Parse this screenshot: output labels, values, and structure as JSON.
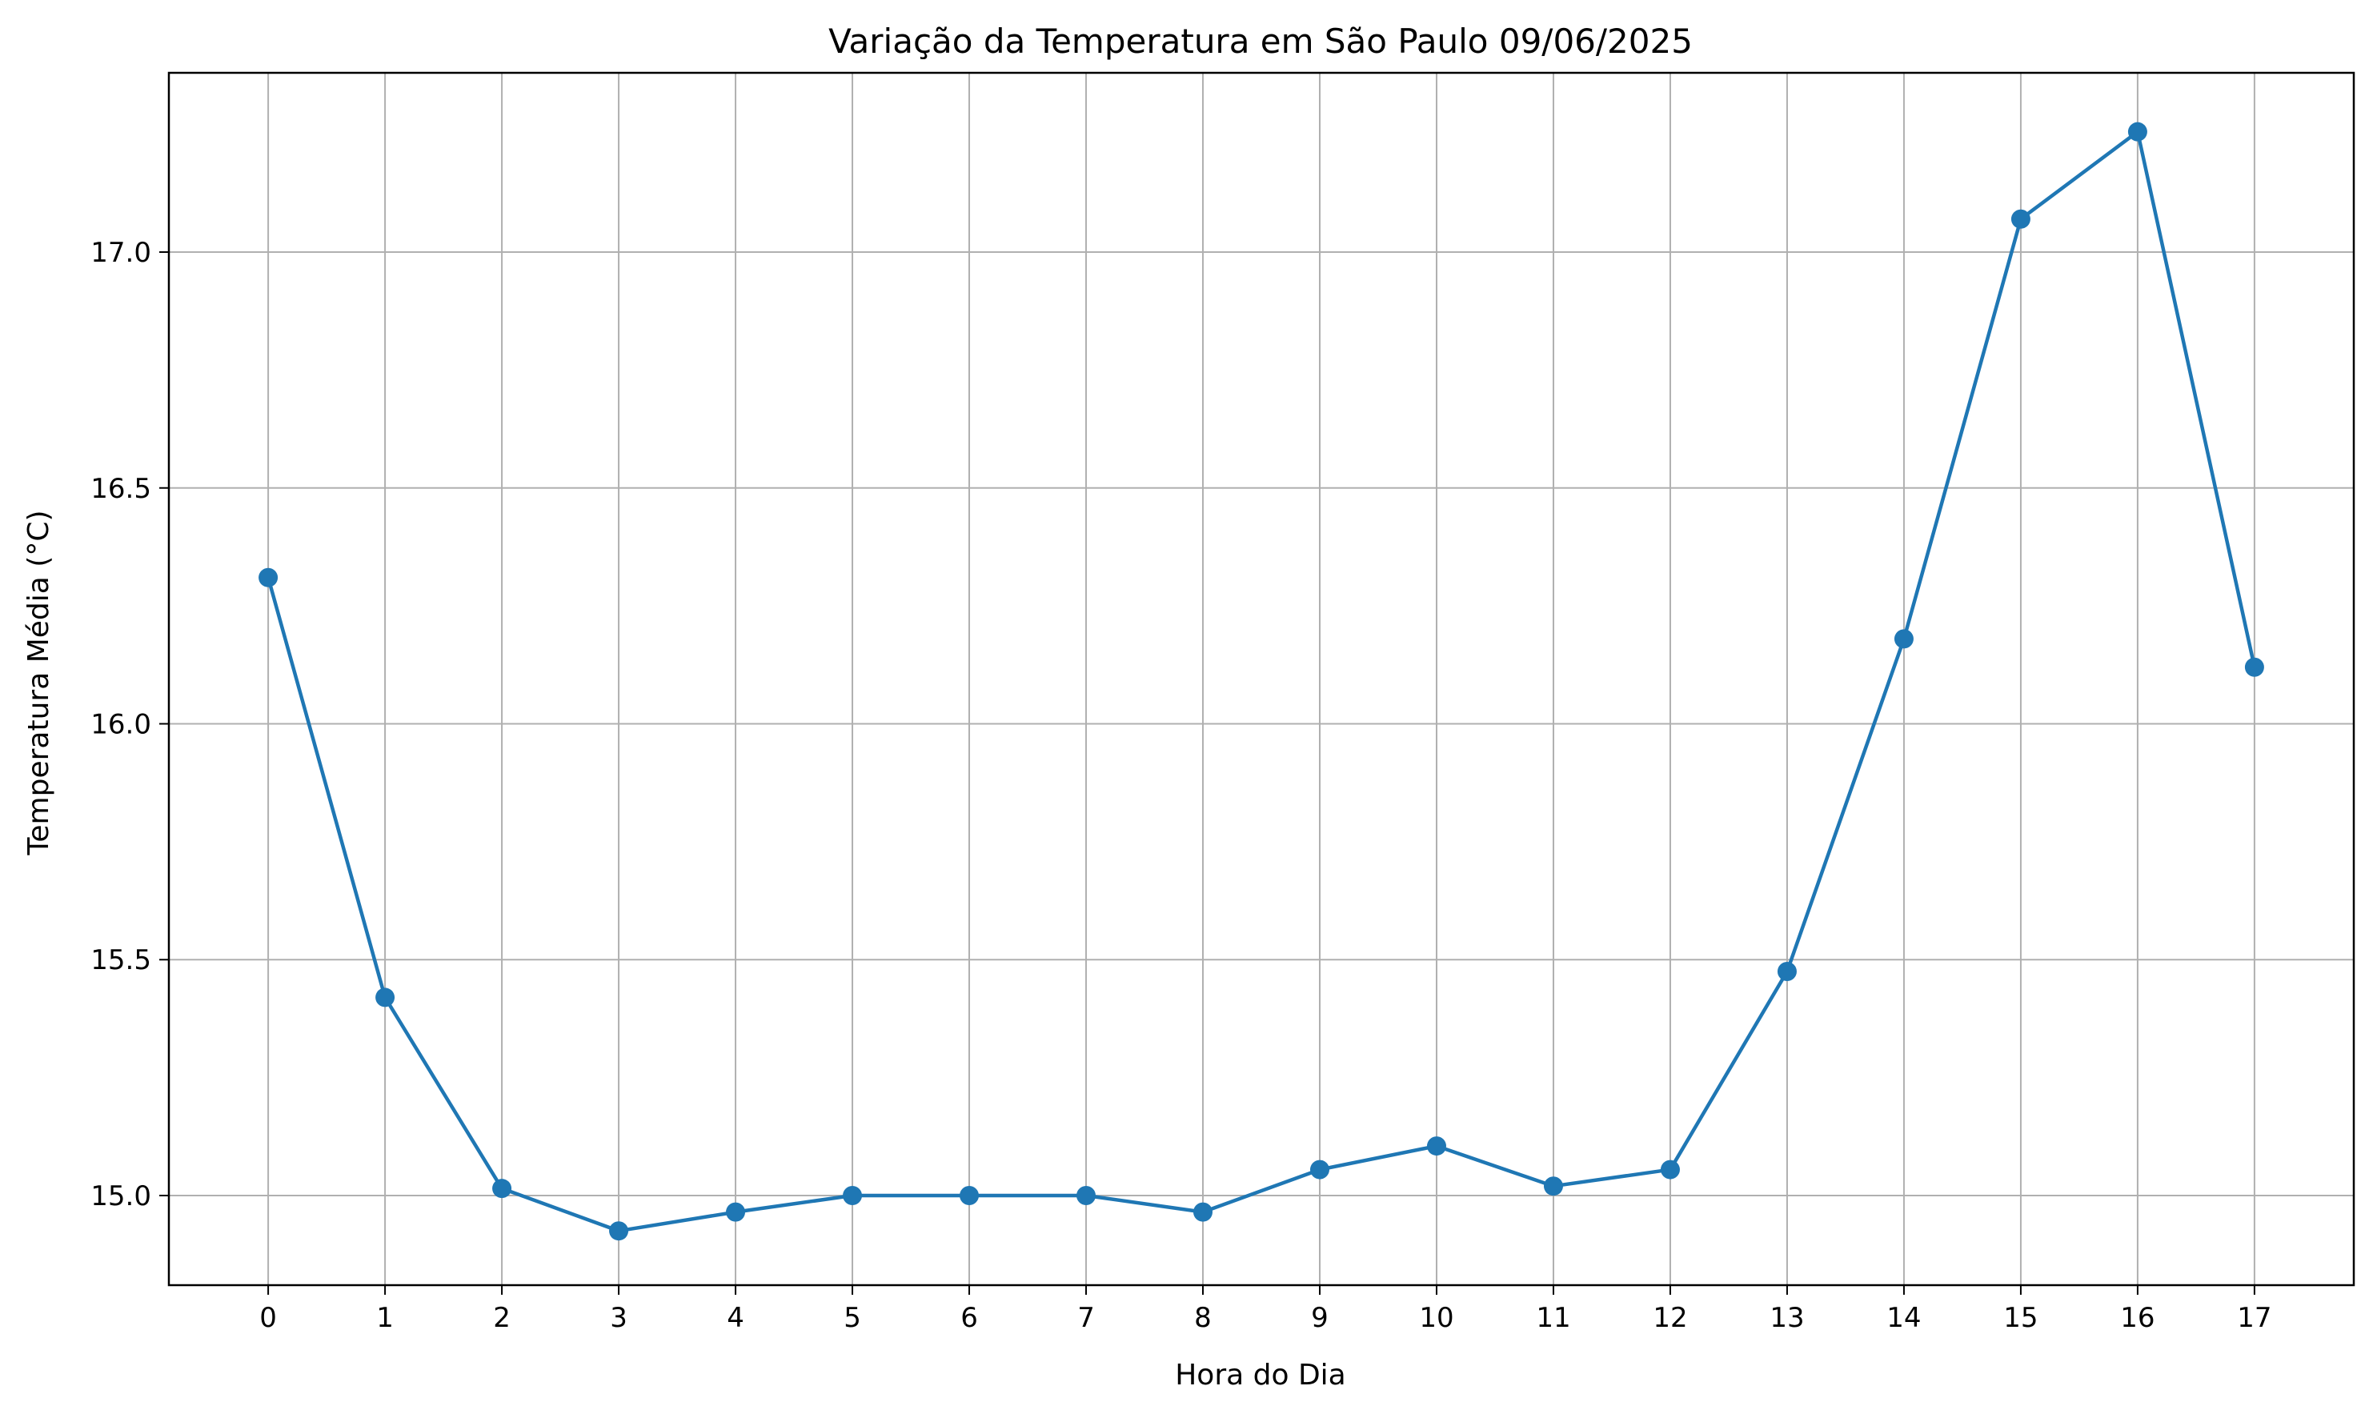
{
  "chart_data": {
    "type": "line",
    "title": "Variação da Temperatura em São Paulo 09/06/2025",
    "xlabel": "Hora do Dia",
    "ylabel": "Temperatura Média (°C)",
    "x": [
      0,
      1,
      2,
      3,
      4,
      5,
      6,
      7,
      8,
      9,
      10,
      11,
      12,
      13,
      14,
      15,
      16,
      17
    ],
    "x_tick_labels": [
      "0",
      "1",
      "2",
      "3",
      "4",
      "5",
      "6",
      "7",
      "8",
      "9",
      "10",
      "11",
      "12",
      "13",
      "14",
      "15",
      "16",
      "17"
    ],
    "y_ticks": [
      15.0,
      15.5,
      16.0,
      16.5,
      17.0
    ],
    "y_tick_labels": [
      "15.0",
      "15.5",
      "16.0",
      "16.5",
      "17.0"
    ],
    "series": [
      {
        "values": [
          16.31,
          15.42,
          15.015,
          14.925,
          14.965,
          15.0,
          15.0,
          15.0,
          14.965,
          15.055,
          15.105,
          15.02,
          15.055,
          15.475,
          16.18,
          17.07,
          17.255,
          16.12
        ],
        "color": "#1f77b4",
        "marker": "circle"
      }
    ],
    "xlim": [
      -0.85,
      17.85
    ],
    "ylim": [
      14.81,
      17.38
    ],
    "grid": true,
    "legend": "none"
  }
}
